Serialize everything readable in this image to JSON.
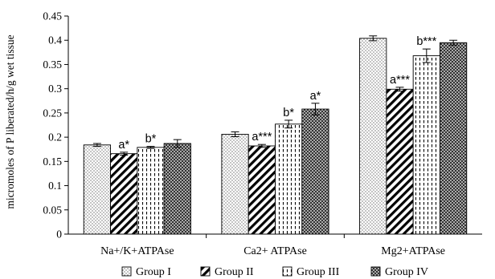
{
  "chart_data": {
    "type": "bar",
    "ylabel": "micromoles of P liberated/h/g wet tissue",
    "ylim": [
      0,
      0.45
    ],
    "yticks": [
      "0",
      "0.05",
      "0.1",
      "0.15",
      "0.2",
      "0.25",
      "0.3",
      "0.35",
      "0.4",
      "0.45"
    ],
    "categories": [
      "Na+/K+ATPAse",
      "Ca2+ ATPAse",
      "Mg2+ATPAse"
    ],
    "legend_position": "bottom",
    "grid": false,
    "series": [
      {
        "name": "Group I",
        "pattern": "dots-fine",
        "values": [
          0.184,
          0.206,
          0.404
        ],
        "errors": [
          0.003,
          0.005,
          0.005
        ],
        "annotations": [
          "",
          "",
          ""
        ]
      },
      {
        "name": "Group II",
        "pattern": "diagonal",
        "values": [
          0.166,
          0.182,
          0.299
        ],
        "errors": [
          0.003,
          0.003,
          0.004
        ],
        "annotations": [
          "a*",
          "a***",
          "a***"
        ]
      },
      {
        "name": "Group III",
        "pattern": "vertical-dash",
        "values": [
          0.179,
          0.227,
          0.368
        ],
        "errors": [
          0.002,
          0.008,
          0.014
        ],
        "annotations": [
          "b*",
          "b*",
          "b***"
        ]
      },
      {
        "name": "Group IV",
        "pattern": "dots-coarse",
        "values": [
          0.187,
          0.258,
          0.395
        ],
        "errors": [
          0.008,
          0.012,
          0.005
        ],
        "annotations": [
          "",
          "a*",
          ""
        ]
      }
    ]
  }
}
